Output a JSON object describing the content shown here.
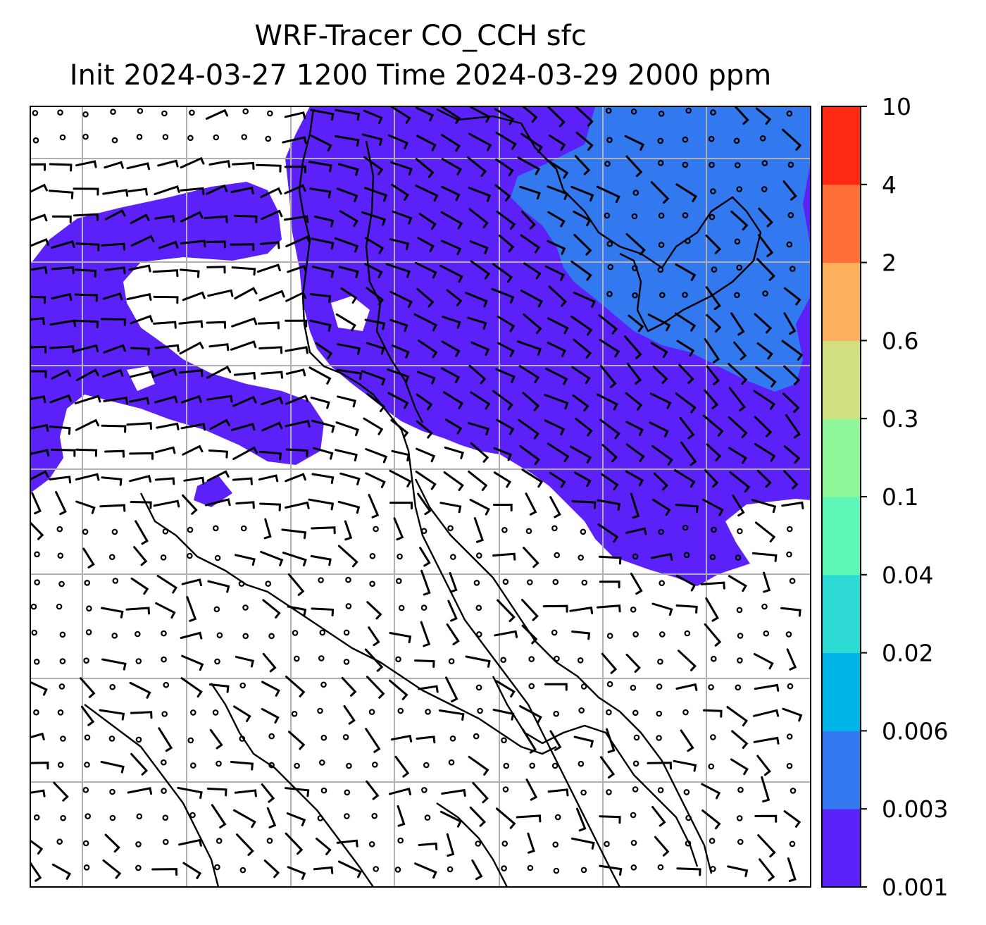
{
  "title": {
    "line1": "WRF-Tracer CO_CCH sfc",
    "line2": "Init 2024-03-27 1200 Time 2024-03-29 2000 ppm"
  },
  "colorbar": {
    "levels": [
      "0.001",
      "0.003",
      "0.006",
      "0.02",
      "0.04",
      "0.1",
      "0.3",
      "0.6",
      "2",
      "4",
      "10"
    ],
    "colors": [
      "#5b21f8",
      "#3278ef",
      "#00b4e8",
      "#2edbd4",
      "#5ef7b5",
      "#8ff79a",
      "#d1df81",
      "#fdb05e",
      "#ff7038",
      "#ff2a13"
    ]
  },
  "map": {
    "field_colors": {
      "low": "#5b21f8",
      "mid": "#3278ef",
      "background": "#ffffff"
    },
    "gridline_color": "#b0b0b0",
    "coastline_color": "#000000",
    "wind_barbs": "black"
  }
}
